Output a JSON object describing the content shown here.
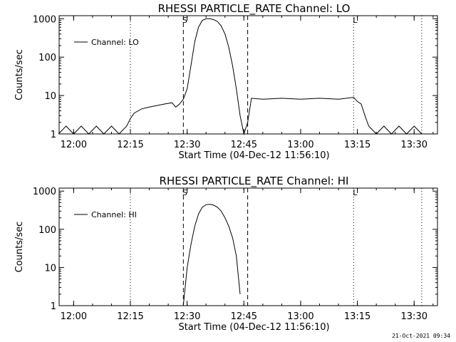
{
  "chart_data": [
    {
      "type": "line",
      "title": "RHESSI PARTICLE_RATE Channel: LO",
      "xlabel": "Start Time (04-Dec-12 11:56:10)",
      "ylabel": "Counts/sec",
      "y_scale": "log",
      "ylim": [
        1,
        1200
      ],
      "xlim": [
        "11:56:10",
        "13:36:10"
      ],
      "x_ticks": [
        "12:00",
        "12:15",
        "12:30",
        "12:45",
        "13:00",
        "13:15",
        "13:30"
      ],
      "y_ticks": [
        "1",
        "10",
        "100",
        "1000"
      ],
      "legend": {
        "position": "top-left",
        "entries": [
          "Channel: LO"
        ]
      },
      "markers": [
        {
          "label": "S",
          "time": "12:29",
          "style": "dashed"
        },
        {
          "label": "",
          "time": "12:46",
          "style": "dashed"
        },
        {
          "label": "",
          "time": "12:15",
          "style": "dotted"
        },
        {
          "label": "L",
          "time": "13:14",
          "style": "dotted"
        },
        {
          "label": "",
          "time": "13:32",
          "style": "dotted"
        }
      ],
      "series": [
        {
          "name": "Channel: LO",
          "points": [
            [
              "11:56",
              1
            ],
            [
              "11:58",
              1.6
            ],
            [
              "12:00",
              1
            ],
            [
              "12:02",
              1.6
            ],
            [
              "12:04",
              1
            ],
            [
              "12:06",
              1.6
            ],
            [
              "12:08",
              1
            ],
            [
              "12:10",
              1.6
            ],
            [
              "12:12",
              1
            ],
            [
              "12:14",
              1.6
            ],
            [
              "12:15",
              2.5
            ],
            [
              "12:16",
              3.5
            ],
            [
              "12:18",
              4.5
            ],
            [
              "12:20",
              5
            ],
            [
              "12:22",
              5.5
            ],
            [
              "12:24",
              6
            ],
            [
              "12:26",
              6.5
            ],
            [
              "12:27",
              5
            ],
            [
              "12:28",
              6
            ],
            [
              "12:29",
              8
            ],
            [
              "12:30",
              15
            ],
            [
              "12:31",
              60
            ],
            [
              "12:32",
              250
            ],
            [
              "12:33",
              600
            ],
            [
              "12:34",
              900
            ],
            [
              "12:35",
              1000
            ],
            [
              "12:36",
              1000
            ],
            [
              "12:37",
              950
            ],
            [
              "12:38",
              850
            ],
            [
              "12:39",
              650
            ],
            [
              "12:40",
              400
            ],
            [
              "12:41",
              180
            ],
            [
              "12:42",
              60
            ],
            [
              "12:43",
              15
            ],
            [
              "12:44",
              3
            ],
            [
              "12:45",
              1
            ],
            [
              "12:46",
              2
            ],
            [
              "12:47",
              8.5
            ],
            [
              "12:50",
              8
            ],
            [
              "12:55",
              8.5
            ],
            [
              "13:00",
              8
            ],
            [
              "13:05",
              8.5
            ],
            [
              "13:10",
              8
            ],
            [
              "13:14",
              9
            ],
            [
              "13:15",
              7
            ],
            [
              "13:16",
              6
            ],
            [
              "13:17",
              3
            ],
            [
              "13:18",
              1.6
            ],
            [
              "13:20",
              1
            ],
            [
              "13:22",
              1.6
            ],
            [
              "13:24",
              1
            ],
            [
              "13:26",
              1.6
            ],
            [
              "13:28",
              1
            ],
            [
              "13:30",
              1.6
            ],
            [
              "13:32",
              1
            ]
          ]
        }
      ]
    },
    {
      "type": "line",
      "title": "RHESSI PARTICLE_RATE Channel: HI",
      "xlabel": "Start Time (04-Dec-12 11:56:10)",
      "ylabel": "Counts/sec",
      "y_scale": "log",
      "ylim": [
        1,
        1200
      ],
      "xlim": [
        "11:56:10",
        "13:36:10"
      ],
      "x_ticks": [
        "12:00",
        "12:15",
        "12:30",
        "12:45",
        "13:00",
        "13:15",
        "13:30"
      ],
      "y_ticks": [
        "1",
        "10",
        "100",
        "1000"
      ],
      "legend": {
        "position": "top-left",
        "entries": [
          "Channel: HI"
        ]
      },
      "markers": [
        {
          "label": "S",
          "time": "12:29",
          "style": "dashed"
        },
        {
          "label": "",
          "time": "12:46",
          "style": "dashed"
        },
        {
          "label": "",
          "time": "12:15",
          "style": "dotted"
        },
        {
          "label": "L",
          "time": "13:14",
          "style": "dotted"
        },
        {
          "label": "",
          "time": "13:32",
          "style": "dotted"
        }
      ],
      "series": [
        {
          "name": "Channel: HI",
          "points": [
            [
              "12:29",
              1
            ],
            [
              "12:30",
              10
            ],
            [
              "12:31",
              40
            ],
            [
              "12:32",
              120
            ],
            [
              "12:33",
              250
            ],
            [
              "12:34",
              380
            ],
            [
              "12:35",
              440
            ],
            [
              "12:36",
              450
            ],
            [
              "12:37",
              430
            ],
            [
              "12:38",
              380
            ],
            [
              "12:39",
              300
            ],
            [
              "12:40",
              200
            ],
            [
              "12:41",
              120
            ],
            [
              "12:42",
              60
            ],
            [
              "12:43",
              20
            ],
            [
              "12:44",
              2
            ]
          ]
        }
      ]
    }
  ],
  "footer": {
    "stamp": "21-Oct-2021 09:34"
  }
}
